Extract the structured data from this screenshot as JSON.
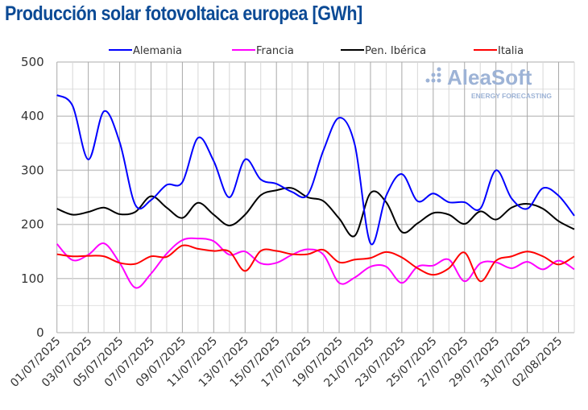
{
  "chart_data": {
    "type": "line",
    "title": "Producción solar fotovoltaica europea [GWh]",
    "xlabel": "",
    "ylabel": "",
    "ylim": [
      0,
      500
    ],
    "yticks": [
      0,
      100,
      200,
      300,
      400,
      500
    ],
    "grid": true,
    "legend": "top",
    "x": [
      "01/07/2025",
      "02/07/2025",
      "03/07/2025",
      "04/07/2025",
      "05/07/2025",
      "06/07/2025",
      "07/07/2025",
      "08/07/2025",
      "09/07/2025",
      "10/07/2025",
      "11/07/2025",
      "12/07/2025",
      "13/07/2025",
      "14/07/2025",
      "15/07/2025",
      "16/07/2025",
      "17/07/2025",
      "18/07/2025",
      "19/07/2025",
      "20/07/2025",
      "21/07/2025",
      "22/07/2025",
      "23/07/2025",
      "24/07/2025",
      "25/07/2025",
      "26/07/2025",
      "27/07/2025",
      "28/07/2025",
      "29/07/2025",
      "30/07/2025",
      "31/07/2025",
      "01/08/2025",
      "02/08/2025",
      "03/08/2025"
    ],
    "xtick_labels": [
      "01/07/2025",
      "03/07/2025",
      "05/07/2025",
      "07/07/2025",
      "09/07/2025",
      "11/07/2025",
      "13/07/2025",
      "15/07/2025",
      "17/07/2025",
      "19/07/2025",
      "21/07/2025",
      "23/07/2025",
      "25/07/2025",
      "27/07/2025",
      "29/07/2025",
      "31/07/2025",
      "02/08/2025"
    ],
    "series": [
      {
        "name": "Alemania",
        "color": "#0000ff",
        "values": [
          439,
          419,
          320,
          409,
          352,
          236,
          245,
          273,
          278,
          360,
          317,
          250,
          320,
          283,
          275,
          260,
          255,
          337,
          397,
          347,
          165,
          253,
          293,
          243,
          257,
          241,
          241,
          229,
          300,
          248,
          229,
          267,
          253,
          216
        ]
      },
      {
        "name": "Francia",
        "color": "#ff00ff",
        "values": [
          164,
          134,
          144,
          165,
          129,
          83,
          109,
          146,
          171,
          174,
          169,
          144,
          150,
          128,
          129,
          144,
          154,
          144,
          92,
          102,
          122,
          122,
          92,
          122,
          124,
          135,
          95,
          128,
          130,
          119,
          131,
          117,
          133,
          117
        ]
      },
      {
        "name": "Pen. Ibérica",
        "color": "#000000",
        "values": [
          229,
          218,
          223,
          231,
          219,
          223,
          252,
          231,
          212,
          240,
          218,
          198,
          218,
          254,
          263,
          267,
          250,
          243,
          211,
          179,
          258,
          241,
          186,
          202,
          221,
          218,
          201,
          224,
          209,
          231,
          238,
          229,
          206,
          191
        ]
      },
      {
        "name": "Italia",
        "color": "#ff0000",
        "values": [
          145,
          141,
          142,
          141,
          129,
          127,
          141,
          140,
          161,
          155,
          151,
          150,
          114,
          151,
          151,
          145,
          145,
          153,
          130,
          135,
          138,
          149,
          139,
          119,
          107,
          119,
          148,
          95,
          133,
          141,
          150,
          141,
          126,
          141
        ]
      }
    ]
  },
  "watermark": {
    "brand": "AleaSoft",
    "tagline": "ENERGY FORECASTING"
  }
}
